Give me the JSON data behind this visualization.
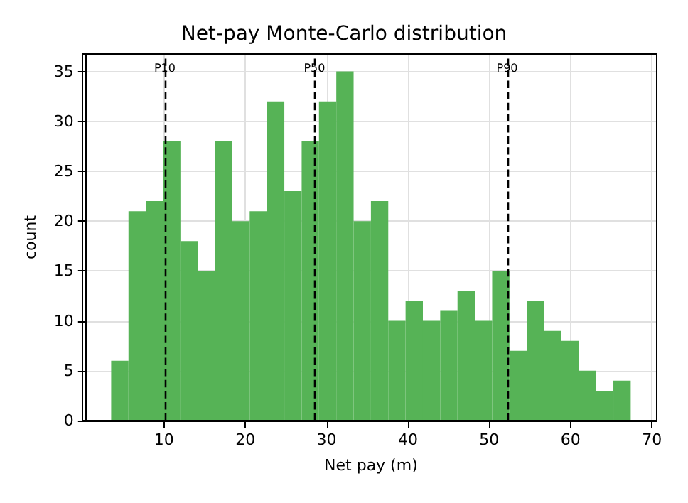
{
  "chart_data": {
    "type": "histogram",
    "title": "Net-pay Monte-Carlo distribution",
    "xlabel": "Net pay (m)",
    "ylabel": "count",
    "color": "#56b356",
    "bins": [
      3.5,
      5.63,
      7.76,
      9.89,
      12.02,
      14.15,
      16.28,
      18.41,
      20.54,
      22.67,
      24.8,
      26.93,
      29.06,
      31.19,
      33.32,
      35.45,
      37.58,
      39.71,
      41.84,
      43.97,
      46.1,
      48.23,
      50.36,
      52.49,
      54.62,
      56.75,
      58.88,
      61.01,
      63.14,
      65.27,
      67.4
    ],
    "values": [
      6,
      21,
      22,
      28,
      18,
      15,
      28,
      20,
      21,
      32,
      23,
      28,
      32,
      35,
      20,
      22,
      10,
      12,
      10,
      11,
      13,
      10,
      15,
      7,
      12,
      9,
      8,
      5,
      3,
      4
    ],
    "xlim": [
      0.3,
      70.6
    ],
    "xticks": [
      10,
      20,
      30,
      40,
      50,
      60,
      70
    ],
    "ylim": [
      0,
      36.75
    ],
    "yticks": [
      0,
      5,
      10,
      15,
      20,
      25,
      30,
      35
    ],
    "grid": true,
    "ref_lines": [
      {
        "axis": "x",
        "value": 10.1,
        "label": "P10",
        "color": "#000000",
        "line_style": "dashed"
      },
      {
        "axis": "x",
        "value": 28.5,
        "label": "P50",
        "color": "#000000",
        "line_style": "dashed"
      },
      {
        "axis": "x",
        "value": 52.2,
        "label": "P90",
        "color": "#000000",
        "line_style": "dashed"
      }
    ]
  }
}
